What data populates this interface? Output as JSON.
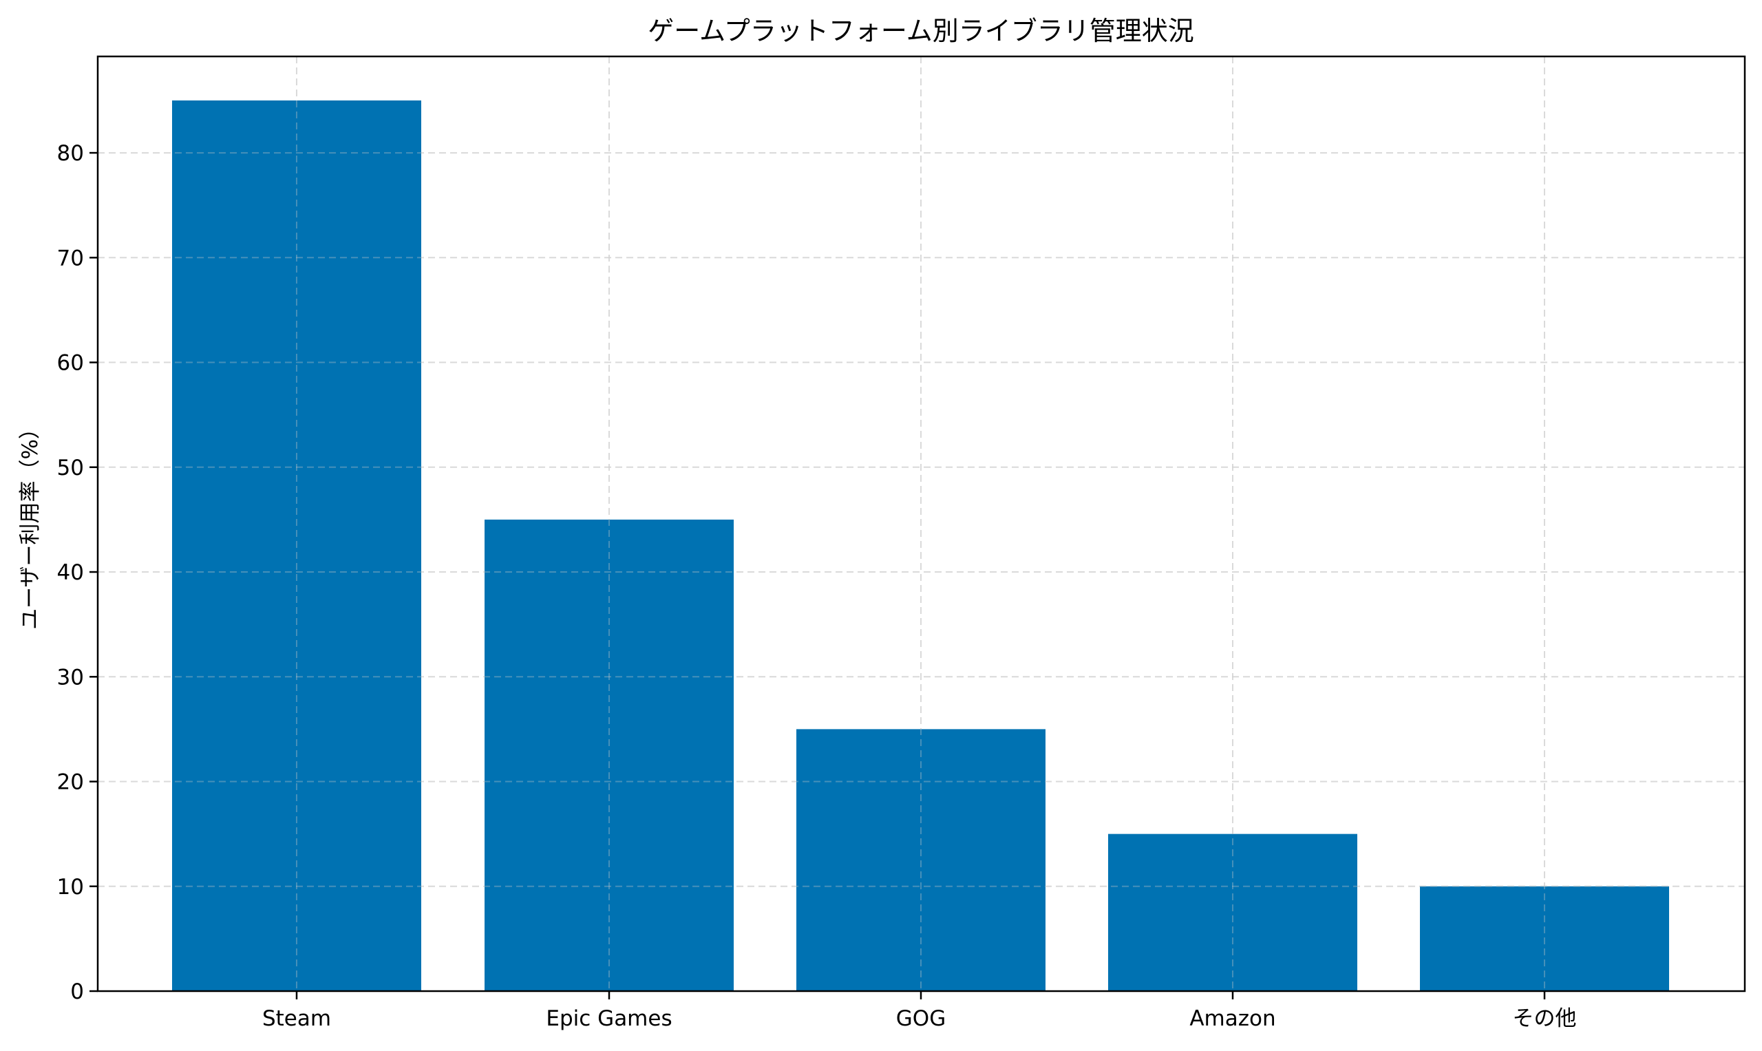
{
  "chart_data": {
    "type": "bar",
    "title": "ゲームプラットフォーム別ライブラリ管理状況",
    "xlabel": "",
    "ylabel": "ユーザー利用率（%）",
    "categories": [
      "Steam",
      "Epic Games",
      "GOG",
      "Amazon",
      "その他"
    ],
    "values": [
      85,
      45,
      25,
      15,
      10
    ],
    "ylim": [
      0,
      89.2
    ],
    "yticks": [
      0,
      10,
      20,
      30,
      40,
      50,
      60,
      70,
      80
    ],
    "grid": true,
    "grid_style": "dashed",
    "legend": null,
    "bar_color": "#0072b2"
  },
  "colors": {
    "bar": "#0072b2",
    "grid": "#e3e3e3",
    "axis": "#000000",
    "background": "#ffffff"
  }
}
